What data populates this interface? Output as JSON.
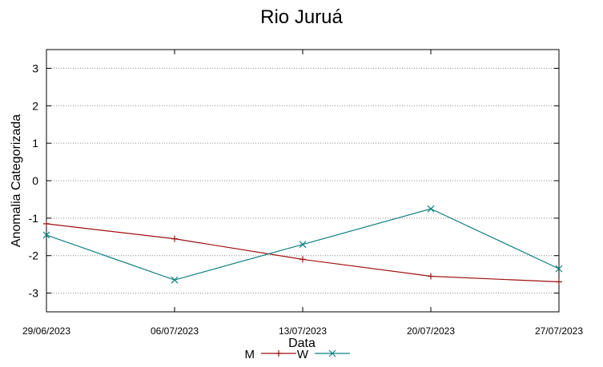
{
  "chart_data": {
    "type": "line",
    "title": "Rio Juruá",
    "xlabel": "Data",
    "ylabel": "Anomalia Categorizada",
    "categories": [
      "29/06/2023",
      "06/07/2023",
      "13/07/2023",
      "20/07/2023",
      "27/07/2023"
    ],
    "yticks": [
      "3",
      "2",
      "1",
      "0",
      "-1",
      "-2",
      "-3"
    ],
    "ylim": [
      -3.5,
      3.5
    ],
    "grid": true,
    "legend_position": "bottom",
    "series": [
      {
        "name": "M",
        "color": "#a01010",
        "marker": "plus",
        "x": [
          "29/06/2023",
          "06/07/2023",
          "13/07/2023",
          "20/07/2023",
          "27/07/2023"
        ],
        "values": [
          -1.15,
          -1.55,
          -2.1,
          -2.55,
          -2.7
        ]
      },
      {
        "name": "W",
        "color": "#107f7f",
        "marker": "cross",
        "x": [
          "29/06/2023",
          "06/07/2023",
          "13/07/2023",
          "20/07/2023",
          "27/07/2023"
        ],
        "values": [
          -1.45,
          -2.65,
          -1.7,
          -0.75,
          -2.35
        ]
      }
    ]
  }
}
